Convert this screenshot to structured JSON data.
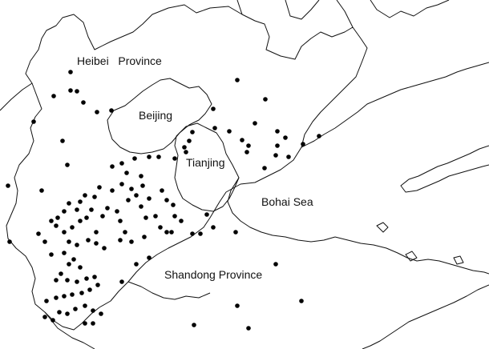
{
  "labels": {
    "hebei": "Heibei   Province",
    "beijing": "Beijing",
    "tianjin": "Tianjing",
    "bohai": "Bohai Sea",
    "shandong": "Shandong Province"
  },
  "colors": {
    "background": "#ffffff",
    "lines": "#111111",
    "points": "#000000"
  },
  "stations": {
    "count": 128
  }
}
